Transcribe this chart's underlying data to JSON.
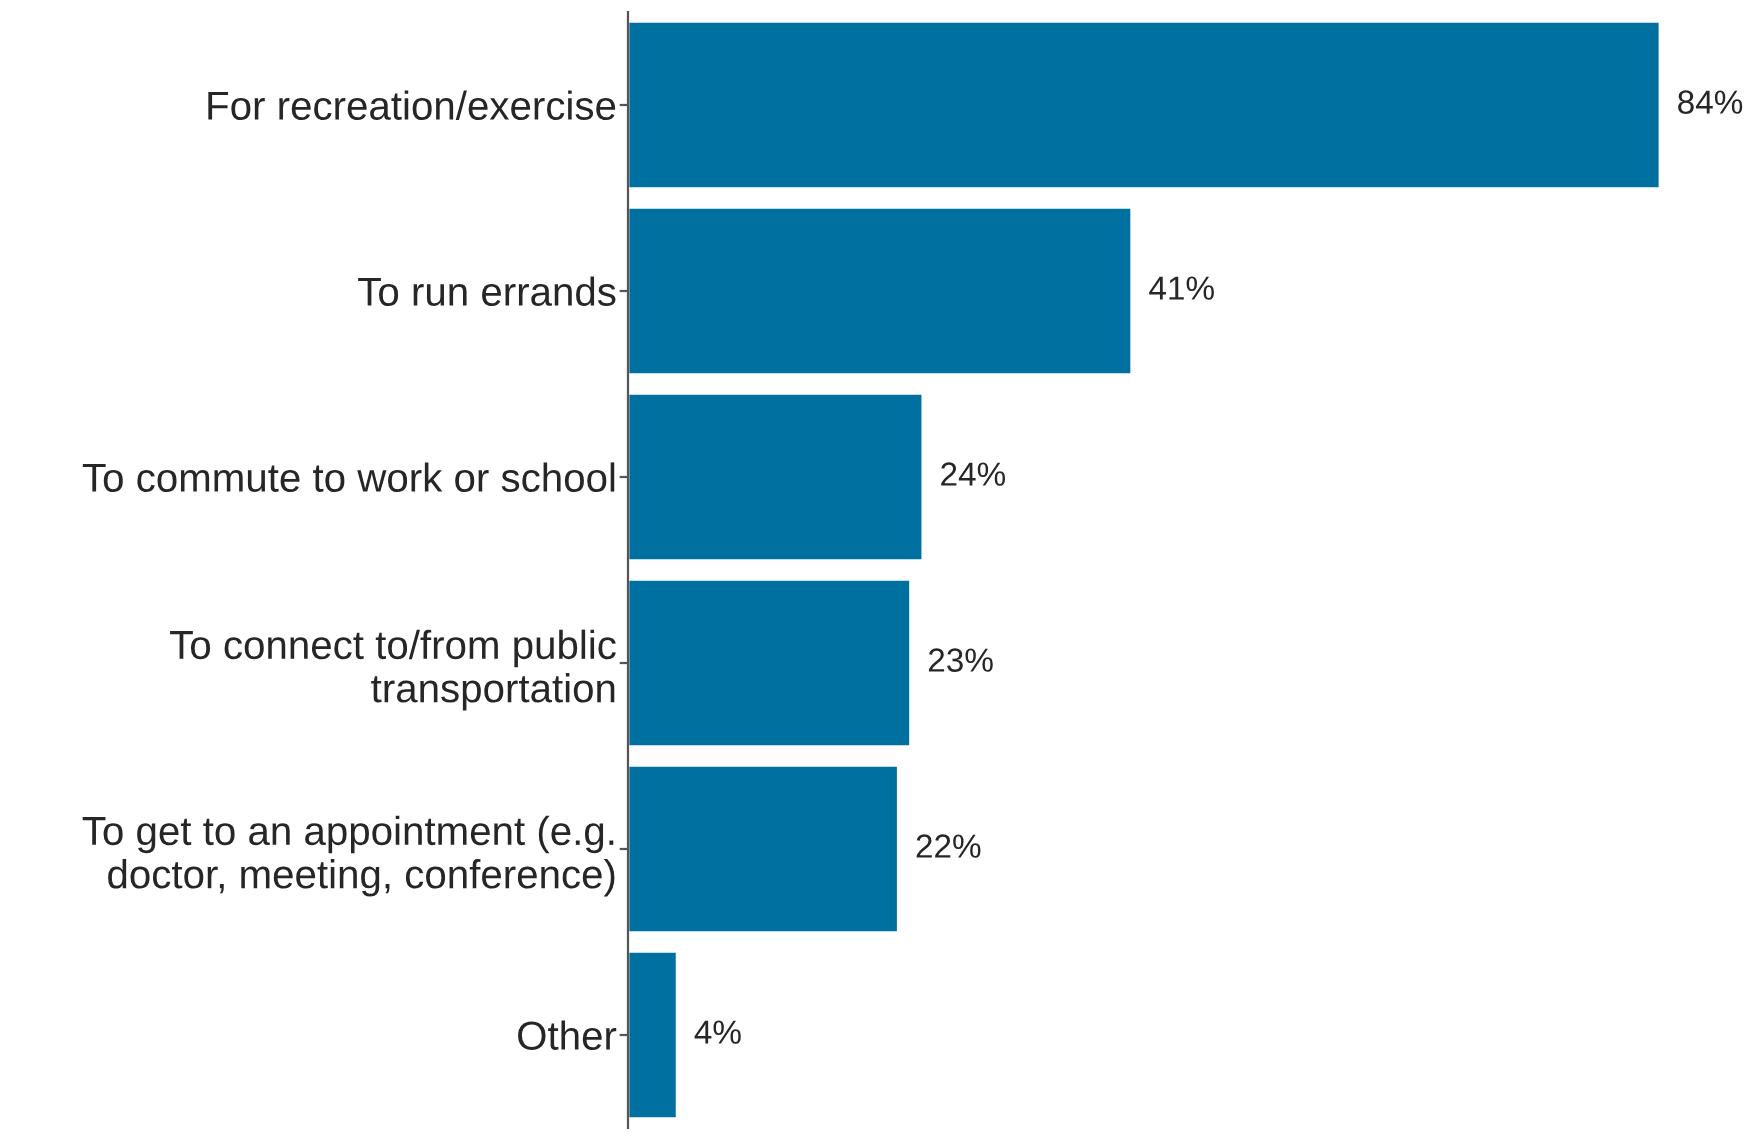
{
  "chart_data": {
    "type": "bar",
    "orientation": "horizontal",
    "categories": [
      "For recreation/exercise",
      "To run errands",
      "To commute to work or school",
      "To connect to/from public\ntransportation",
      "To get to an appointment (e.g.\ndoctor, meeting, conference)",
      "Other"
    ],
    "values": [
      84,
      41,
      24,
      23,
      22,
      4
    ],
    "value_labels": [
      "84%",
      "41%",
      "24%",
      "23%",
      "22%",
      "4%"
    ],
    "color": "#0070a0",
    "grid": false,
    "legend": false
  }
}
